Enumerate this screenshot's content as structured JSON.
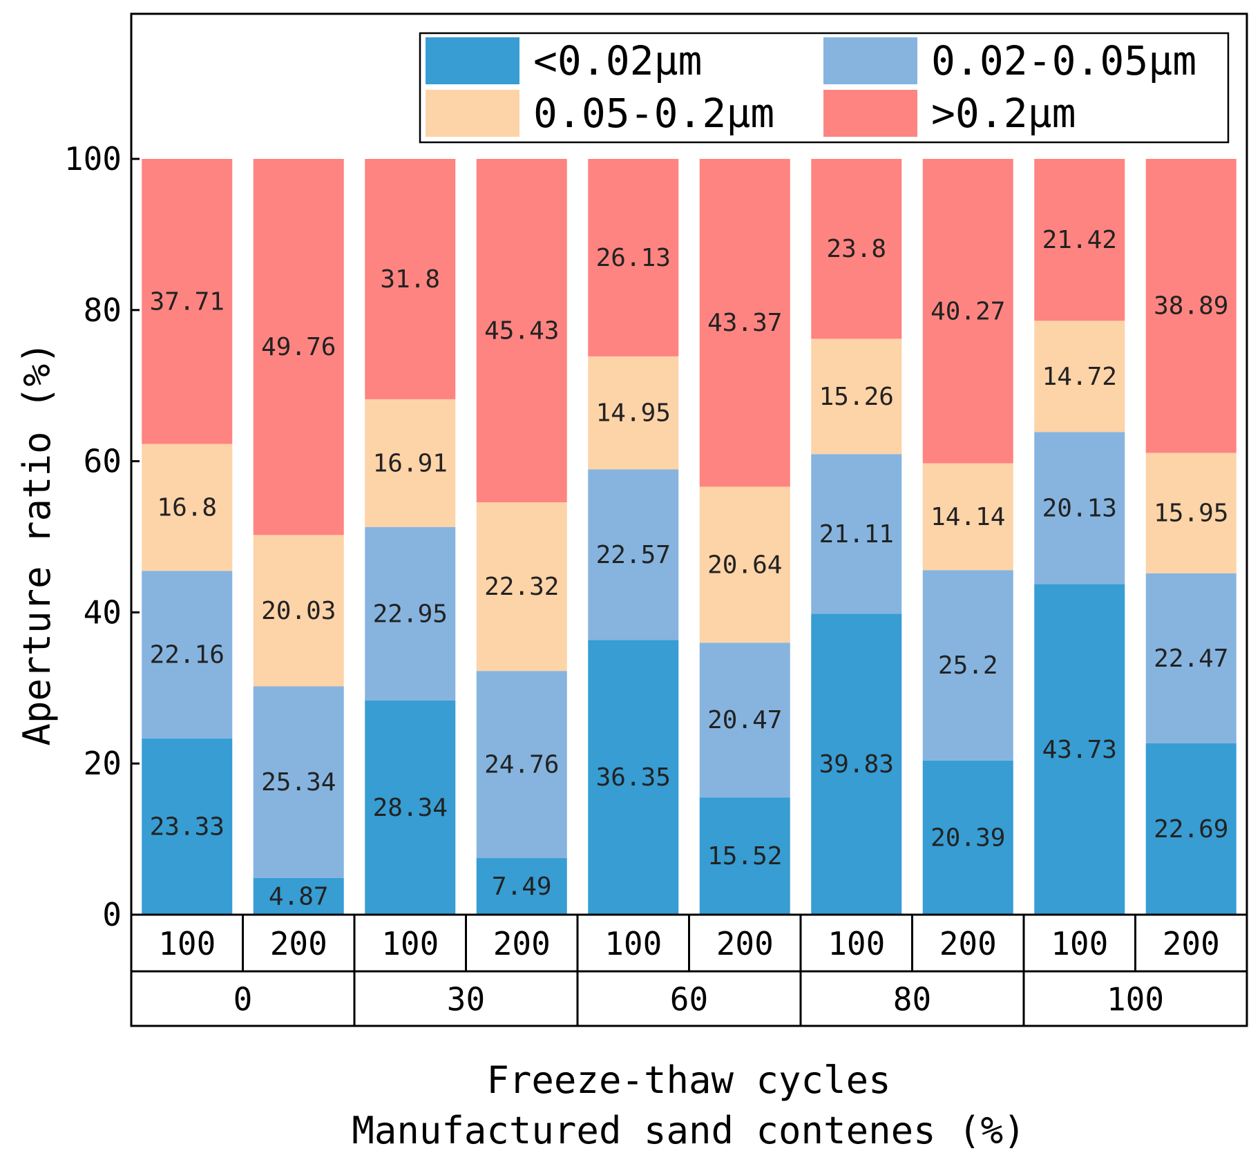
{
  "chart_data": {
    "type": "bar",
    "stacked": true,
    "ylabel": "Aperture ratio (%)",
    "xlabel_lines": [
      "Freeze-thaw cycles",
      "Manufactured sand contenes (%)"
    ],
    "ylim": [
      0,
      100
    ],
    "yticks": [
      0,
      20,
      40,
      60,
      80,
      100
    ],
    "grid": false,
    "legend_position": "top",
    "categories": [
      "100",
      "200",
      "100",
      "200",
      "100",
      "200",
      "100",
      "200",
      "100",
      "200"
    ],
    "groups": [
      {
        "label": "0",
        "categories": [
          "100",
          "200"
        ]
      },
      {
        "label": "30",
        "categories": [
          "100",
          "200"
        ]
      },
      {
        "label": "60",
        "categories": [
          "100",
          "200"
        ]
      },
      {
        "label": "80",
        "categories": [
          "100",
          "200"
        ]
      },
      {
        "label": "100",
        "categories": [
          "100",
          "200"
        ]
      }
    ],
    "series": [
      {
        "name": "<0.02μm",
        "color": "#379dd3",
        "values": [
          23.33,
          4.87,
          28.34,
          7.49,
          36.35,
          15.52,
          39.83,
          20.39,
          43.73,
          22.69
        ],
        "labels": [
          "23.33",
          "4.87",
          "28.34",
          "7.49",
          "36.35",
          "15.52",
          "39.83",
          "20.39",
          "43.73",
          "22.69"
        ]
      },
      {
        "name": "0.02-0.05μm",
        "color": "#86b4df",
        "values": [
          22.16,
          25.34,
          22.95,
          24.76,
          22.57,
          20.47,
          21.11,
          25.2,
          20.13,
          22.47
        ],
        "labels": [
          "22.16",
          "25.34",
          "22.95",
          "24.76",
          "22.57",
          "20.47",
          "21.11",
          "25.2",
          "20.13",
          "22.47"
        ]
      },
      {
        "name": "0.05-0.2μm",
        "color": "#fdd3a8",
        "values": [
          16.8,
          20.03,
          16.91,
          22.32,
          14.95,
          20.64,
          15.26,
          14.14,
          14.72,
          15.95
        ],
        "labels": [
          "16.8",
          "20.03",
          "16.91",
          "22.32",
          "14.95",
          "20.64",
          "15.26",
          "14.14",
          "14.72",
          "15.95"
        ]
      },
      {
        "name": ">0.2μm",
        "color": "#fe8481",
        "values": [
          37.71,
          49.76,
          31.8,
          45.43,
          26.13,
          43.37,
          23.8,
          40.27,
          21.42,
          38.89
        ],
        "labels": [
          "37.71",
          "49.76",
          "31.8",
          "45.43",
          "26.13",
          "43.37",
          "23.8",
          "40.27",
          "21.42",
          "38.89"
        ]
      }
    ]
  }
}
